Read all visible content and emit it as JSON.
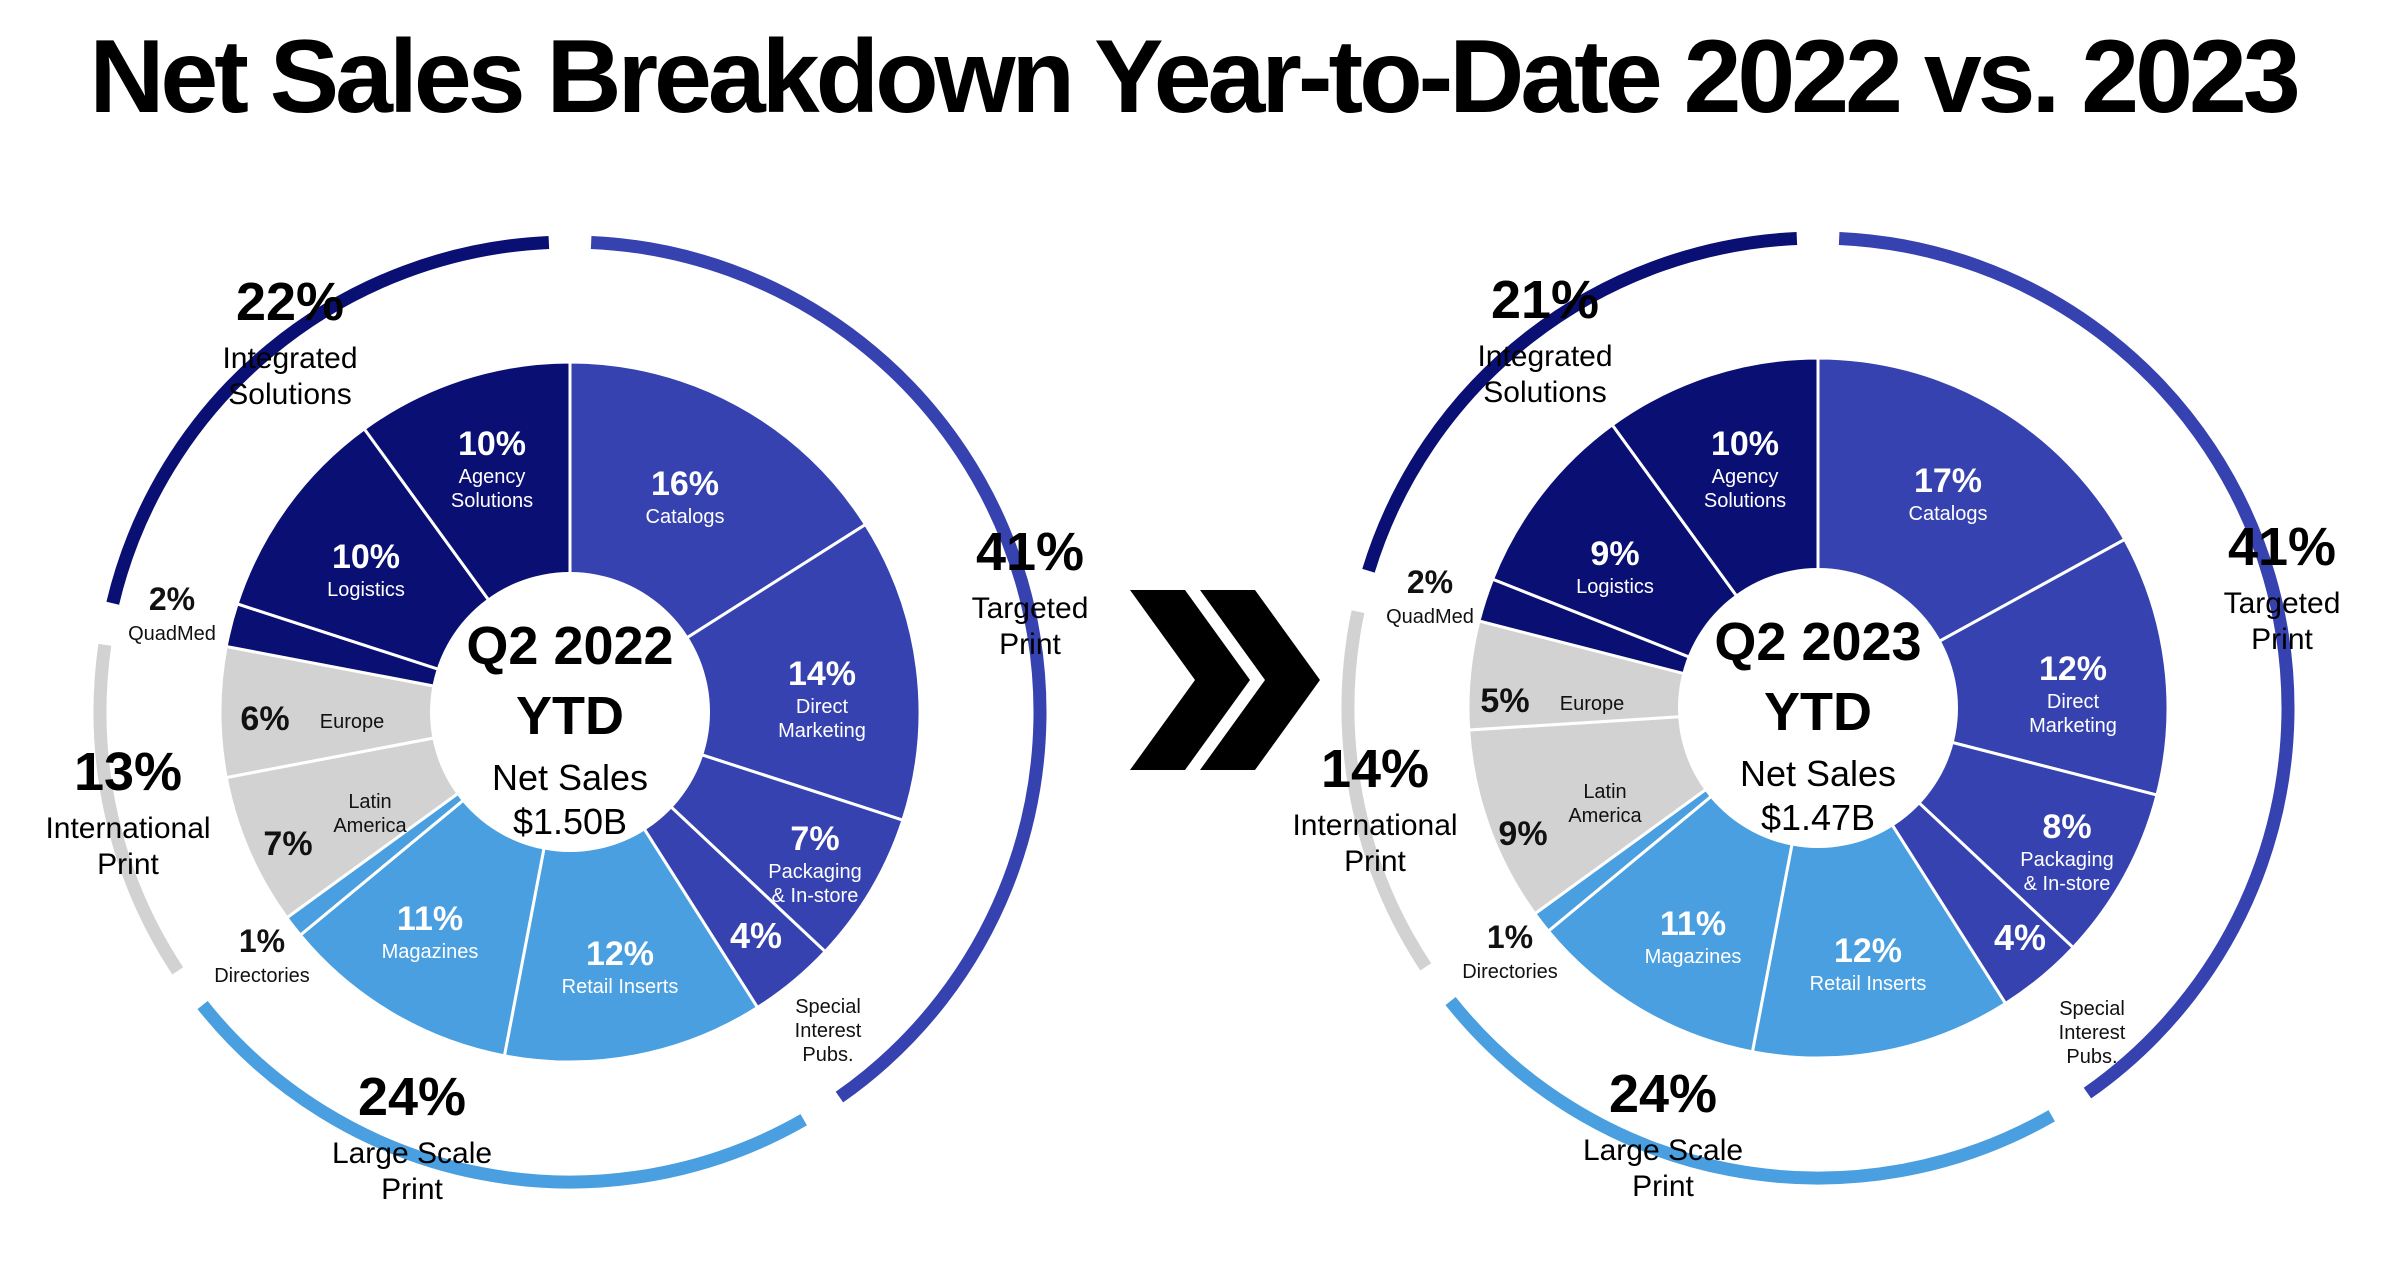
{
  "title": "Net Sales Breakdown Year-to-Date 2022 vs. 2023",
  "colors": {
    "integrated": "#0a0f73",
    "targeted": "#3642b0",
    "large_scale": "#4a9fe0",
    "international": "#d3d2d3",
    "text_light": "#ffffff",
    "text_dark": "#111111"
  },
  "chart_data": [
    {
      "type": "pie",
      "center_title_line1": "Q2 2022",
      "center_title_line2": "YTD",
      "center_sub_line1": "Net Sales",
      "center_sub_line2": "$1.50B",
      "slices": [
        {
          "label": "Catalogs",
          "value": 16,
          "value_label": "16%",
          "group": "targeted"
        },
        {
          "label": "Direct Marketing",
          "value": 14,
          "value_label": "14%",
          "group": "targeted"
        },
        {
          "label": "Packaging & In-store",
          "value": 7,
          "value_label": "7%",
          "group": "targeted"
        },
        {
          "label": "Special Interest Pubs.",
          "value": 4,
          "value_label": "4%",
          "group": "targeted"
        },
        {
          "label": "Retail Inserts",
          "value": 12,
          "value_label": "12%",
          "group": "large_scale"
        },
        {
          "label": "Magazines",
          "value": 11,
          "value_label": "11%",
          "group": "large_scale"
        },
        {
          "label": "Directories",
          "value": 1,
          "value_label": "1%",
          "group": "large_scale"
        },
        {
          "label": "Latin America",
          "value": 7,
          "value_label": "7%",
          "group": "international"
        },
        {
          "label": "Europe",
          "value": 6,
          "value_label": "6%",
          "group": "international"
        },
        {
          "label": "QuadMed",
          "value": 2,
          "value_label": "2%",
          "group": "integrated"
        },
        {
          "label": "Logistics",
          "value": 10,
          "value_label": "10%",
          "group": "integrated"
        },
        {
          "label": "Agency Solutions",
          "value": 10,
          "value_label": "10%",
          "group": "integrated"
        }
      ],
      "groups": [
        {
          "key": "targeted",
          "value_label": "41%",
          "label": "Targeted Print"
        },
        {
          "key": "large_scale",
          "value_label": "24%",
          "label": "Large Scale Print"
        },
        {
          "key": "international",
          "value_label": "13%",
          "label": "International Print"
        },
        {
          "key": "integrated",
          "value_label": "22%",
          "label": "Integrated Solutions"
        }
      ]
    },
    {
      "type": "pie",
      "center_title_line1": "Q2 2023",
      "center_title_line2": "YTD",
      "center_sub_line1": "Net Sales",
      "center_sub_line2": "$1.47B",
      "slices": [
        {
          "label": "Catalogs",
          "value": 17,
          "value_label": "17%",
          "group": "targeted"
        },
        {
          "label": "Direct Marketing",
          "value": 12,
          "value_label": "12%",
          "group": "targeted"
        },
        {
          "label": "Packaging & In-store",
          "value": 8,
          "value_label": "8%",
          "group": "targeted"
        },
        {
          "label": "Special Interest Pubs.",
          "value": 4,
          "value_label": "4%",
          "group": "targeted"
        },
        {
          "label": "Retail Inserts",
          "value": 12,
          "value_label": "12%",
          "group": "large_scale"
        },
        {
          "label": "Magazines",
          "value": 11,
          "value_label": "11%",
          "group": "large_scale"
        },
        {
          "label": "Directories",
          "value": 1,
          "value_label": "1%",
          "group": "large_scale"
        },
        {
          "label": "Latin America",
          "value": 9,
          "value_label": "9%",
          "group": "international"
        },
        {
          "label": "Europe",
          "value": 5,
          "value_label": "5%",
          "group": "international"
        },
        {
          "label": "QuadMed",
          "value": 2,
          "value_label": "2%",
          "group": "integrated"
        },
        {
          "label": "Logistics",
          "value": 9,
          "value_label": "9%",
          "group": "integrated"
        },
        {
          "label": "Agency Solutions",
          "value": 10,
          "value_label": "10%",
          "group": "integrated"
        }
      ],
      "groups": [
        {
          "key": "targeted",
          "value_label": "41%",
          "label": "Targeted Print"
        },
        {
          "key": "large_scale",
          "value_label": "24%",
          "label": "Large Scale Print"
        },
        {
          "key": "international",
          "value_label": "14%",
          "label": "International Print"
        },
        {
          "key": "integrated",
          "value_label": "21%",
          "label": "Integrated Solutions"
        }
      ]
    }
  ]
}
